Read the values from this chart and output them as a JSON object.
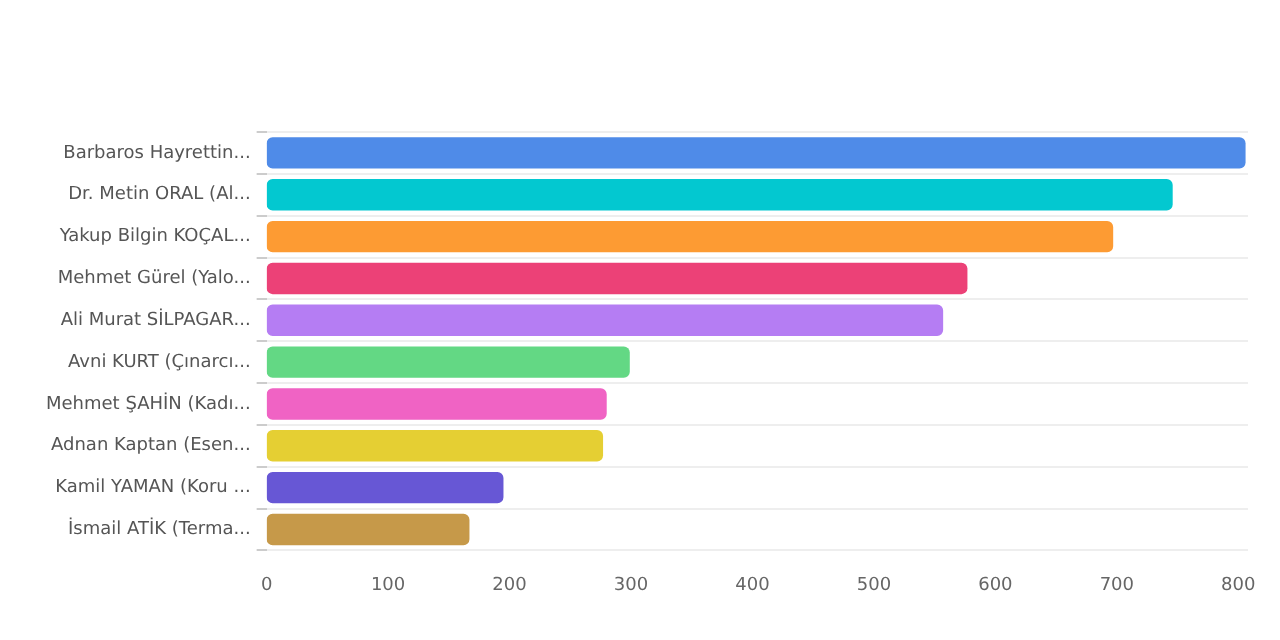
{
  "chart_data": {
    "type": "bar",
    "orientation": "horizontal",
    "categories": [
      "Barbaros Hayrettin...",
      "Dr. Metin ORAL (Al...",
      "Yakup Bilgin KOÇAL...",
      "Mehmet Gürel (Yalo...",
      "Ali Murat SİLPAGAR...",
      "Avni KURT (Çınarcı...",
      "Mehmet ŞAHİN (Kadı...",
      "Adnan Kaptan (Esen...",
      "Kamil YAMAN (Koru ...",
      "İsmail ATİK (Terma..."
    ],
    "values": [
      806,
      746,
      697,
      577,
      557,
      299,
      280,
      277,
      195,
      167
    ],
    "colors": [
      "#4f8be8",
      "#03c8d0",
      "#fd9b33",
      "#ec4177",
      "#b57df3",
      "#63d884",
      "#f063c4",
      "#e5cf33",
      "#6757d5",
      "#c69949"
    ],
    "xlim": [
      0,
      808
    ],
    "xticks": [
      0,
      100,
      200,
      300,
      400,
      500,
      600,
      700,
      800
    ],
    "grid": "y",
    "legend": false
  }
}
